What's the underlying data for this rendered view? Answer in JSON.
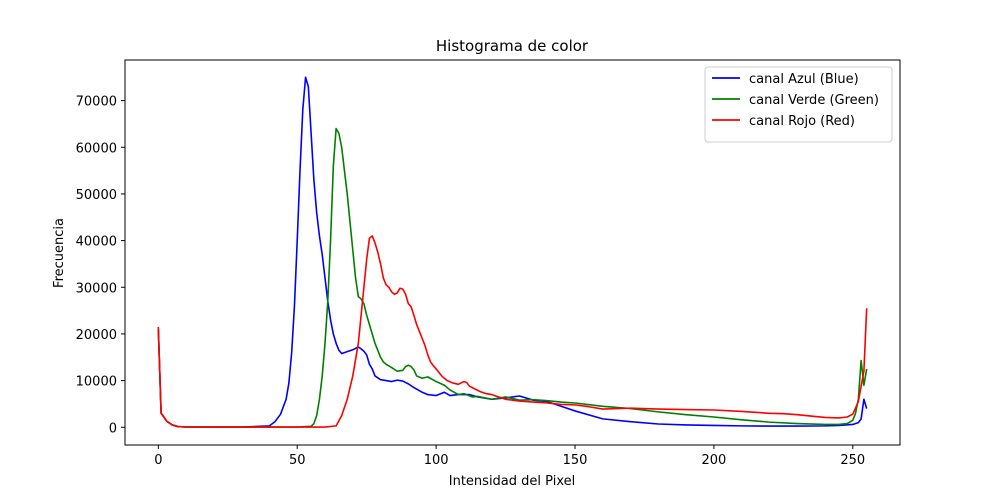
{
  "chart_data": {
    "type": "line",
    "title": "Histograma de color",
    "xlabel": "Intensidad del Pixel",
    "ylabel": "Frecuencia",
    "xlim": [
      -12,
      267
    ],
    "ylim": [
      -3800,
      78700
    ],
    "xticks": [
      0,
      50,
      100,
      150,
      200,
      250
    ],
    "yticks": [
      0,
      10000,
      20000,
      30000,
      40000,
      50000,
      60000,
      70000
    ],
    "grid": false,
    "legend_position": "top-right",
    "series": [
      {
        "name": "canal Azul (Blue)",
        "color": "#0000ff",
        "points": [
          [
            0,
            21000
          ],
          [
            1,
            3000
          ],
          [
            2,
            2200
          ],
          [
            3,
            1300
          ],
          [
            5,
            500
          ],
          [
            7,
            150
          ],
          [
            10,
            60
          ],
          [
            20,
            40
          ],
          [
            30,
            40
          ],
          [
            40,
            300
          ],
          [
            42,
            1200
          ],
          [
            44,
            2800
          ],
          [
            46,
            6000
          ],
          [
            47,
            9500
          ],
          [
            48,
            16000
          ],
          [
            49,
            26000
          ],
          [
            50,
            40000
          ],
          [
            51,
            55000
          ],
          [
            52,
            68000
          ],
          [
            53,
            75000
          ],
          [
            54,
            73000
          ],
          [
            55,
            63000
          ],
          [
            56,
            53000
          ],
          [
            57,
            46000
          ],
          [
            58,
            41000
          ],
          [
            59,
            37000
          ],
          [
            60,
            32000
          ],
          [
            61,
            27000
          ],
          [
            62,
            23000
          ],
          [
            63,
            20000
          ],
          [
            64,
            18000
          ],
          [
            65,
            16500
          ],
          [
            66,
            15800
          ],
          [
            67,
            16000
          ],
          [
            68,
            16200
          ],
          [
            70,
            16600
          ],
          [
            72,
            17200
          ],
          [
            73,
            16800
          ],
          [
            74,
            16300
          ],
          [
            75,
            15500
          ],
          [
            76,
            13500
          ],
          [
            77,
            12500
          ],
          [
            78,
            11000
          ],
          [
            80,
            10200
          ],
          [
            82,
            10000
          ],
          [
            84,
            9800
          ],
          [
            86,
            10100
          ],
          [
            88,
            9900
          ],
          [
            90,
            9300
          ],
          [
            92,
            8500
          ],
          [
            95,
            7500
          ],
          [
            97,
            7000
          ],
          [
            100,
            6800
          ],
          [
            103,
            7500
          ],
          [
            105,
            6800
          ],
          [
            108,
            7000
          ],
          [
            110,
            7000
          ],
          [
            112,
            7000
          ],
          [
            115,
            6500
          ],
          [
            120,
            6000
          ],
          [
            125,
            6300
          ],
          [
            130,
            6700
          ],
          [
            135,
            5800
          ],
          [
            140,
            5500
          ],
          [
            145,
            4500
          ],
          [
            150,
            3500
          ],
          [
            160,
            1800
          ],
          [
            170,
            1200
          ],
          [
            180,
            700
          ],
          [
            190,
            500
          ],
          [
            200,
            400
          ],
          [
            210,
            300
          ],
          [
            220,
            250
          ],
          [
            230,
            250
          ],
          [
            240,
            300
          ],
          [
            245,
            400
          ],
          [
            250,
            600
          ],
          [
            252,
            1000
          ],
          [
            253,
            1800
          ],
          [
            254,
            6000
          ],
          [
            255,
            4000
          ]
        ]
      },
      {
        "name": "canal Verde (Green)",
        "color": "#008000",
        "points": [
          [
            0,
            21000
          ],
          [
            1,
            3000
          ],
          [
            2,
            2200
          ],
          [
            3,
            1300
          ],
          [
            5,
            500
          ],
          [
            7,
            150
          ],
          [
            10,
            60
          ],
          [
            20,
            40
          ],
          [
            30,
            40
          ],
          [
            40,
            40
          ],
          [
            50,
            40
          ],
          [
            55,
            200
          ],
          [
            56,
            800
          ],
          [
            57,
            2500
          ],
          [
            58,
            6000
          ],
          [
            59,
            11000
          ],
          [
            60,
            18000
          ],
          [
            61,
            27000
          ],
          [
            62,
            40000
          ],
          [
            63,
            56000
          ],
          [
            64,
            64000
          ],
          [
            65,
            63000
          ],
          [
            66,
            60000
          ],
          [
            67,
            55000
          ],
          [
            68,
            50000
          ],
          [
            69,
            44000
          ],
          [
            70,
            38000
          ],
          [
            71,
            32000
          ],
          [
            72,
            28000
          ],
          [
            73,
            27500
          ],
          [
            74,
            26500
          ],
          [
            75,
            24000
          ],
          [
            76,
            22000
          ],
          [
            77,
            20000
          ],
          [
            78,
            18000
          ],
          [
            79,
            16500
          ],
          [
            80,
            15000
          ],
          [
            81,
            14000
          ],
          [
            82,
            13500
          ],
          [
            84,
            12800
          ],
          [
            86,
            12000
          ],
          [
            88,
            12200
          ],
          [
            89,
            13000
          ],
          [
            90,
            13300
          ],
          [
            91,
            13000
          ],
          [
            92,
            12300
          ],
          [
            93,
            11000
          ],
          [
            95,
            10500
          ],
          [
            97,
            10800
          ],
          [
            100,
            9800
          ],
          [
            103,
            9000
          ],
          [
            105,
            8000
          ],
          [
            108,
            7000
          ],
          [
            110,
            7200
          ],
          [
            113,
            6500
          ],
          [
            115,
            6600
          ],
          [
            120,
            6000
          ],
          [
            125,
            6500
          ],
          [
            130,
            5800
          ],
          [
            135,
            5900
          ],
          [
            140,
            5700
          ],
          [
            145,
            5400
          ],
          [
            150,
            5200
          ],
          [
            160,
            4500
          ],
          [
            170,
            4000
          ],
          [
            180,
            3300
          ],
          [
            190,
            2700
          ],
          [
            200,
            2200
          ],
          [
            210,
            1600
          ],
          [
            220,
            1100
          ],
          [
            230,
            800
          ],
          [
            240,
            600
          ],
          [
            245,
            600
          ],
          [
            248,
            800
          ],
          [
            250,
            1500
          ],
          [
            251,
            3000
          ],
          [
            252,
            6000
          ],
          [
            253,
            14300
          ],
          [
            254,
            9000
          ],
          [
            255,
            12500
          ]
        ]
      },
      {
        "name": "canal Rojo (Red)",
        "color": "#ff0000",
        "points": [
          [
            0,
            21500
          ],
          [
            1,
            3000
          ],
          [
            2,
            2200
          ],
          [
            3,
            1300
          ],
          [
            5,
            500
          ],
          [
            7,
            150
          ],
          [
            10,
            60
          ],
          [
            20,
            40
          ],
          [
            30,
            40
          ],
          [
            40,
            40
          ],
          [
            50,
            40
          ],
          [
            60,
            40
          ],
          [
            64,
            300
          ],
          [
            66,
            2500
          ],
          [
            68,
            6000
          ],
          [
            70,
            11000
          ],
          [
            72,
            18000
          ],
          [
            73,
            24000
          ],
          [
            74,
            30000
          ],
          [
            75,
            36000
          ],
          [
            76,
            40500
          ],
          [
            77,
            41000
          ],
          [
            78,
            39500
          ],
          [
            79,
            37500
          ],
          [
            80,
            35000
          ],
          [
            81,
            32000
          ],
          [
            82,
            30500
          ],
          [
            83,
            30000
          ],
          [
            84,
            29000
          ],
          [
            85,
            28500
          ],
          [
            86,
            28800
          ],
          [
            87,
            29800
          ],
          [
            88,
            29600
          ],
          [
            89,
            28500
          ],
          [
            90,
            26500
          ],
          [
            91,
            25800
          ],
          [
            92,
            24000
          ],
          [
            93,
            22000
          ],
          [
            94,
            20500
          ],
          [
            95,
            19000
          ],
          [
            96,
            17500
          ],
          [
            97,
            15500
          ],
          [
            98,
            14000
          ],
          [
            99,
            13200
          ],
          [
            100,
            12500
          ],
          [
            102,
            11000
          ],
          [
            104,
            10000
          ],
          [
            106,
            9500
          ],
          [
            108,
            9200
          ],
          [
            110,
            9800
          ],
          [
            111,
            9600
          ],
          [
            112,
            8800
          ],
          [
            114,
            8200
          ],
          [
            116,
            7600
          ],
          [
            118,
            7200
          ],
          [
            120,
            7000
          ],
          [
            125,
            6000
          ],
          [
            130,
            5600
          ],
          [
            135,
            5400
          ],
          [
            140,
            5200
          ],
          [
            145,
            4900
          ],
          [
            150,
            4800
          ],
          [
            155,
            4400
          ],
          [
            160,
            3900
          ],
          [
            170,
            4100
          ],
          [
            180,
            3900
          ],
          [
            190,
            3800
          ],
          [
            200,
            3700
          ],
          [
            210,
            3400
          ],
          [
            220,
            3000
          ],
          [
            225,
            2900
          ],
          [
            230,
            2700
          ],
          [
            235,
            2400
          ],
          [
            240,
            2100
          ],
          [
            245,
            2000
          ],
          [
            248,
            2200
          ],
          [
            250,
            2800
          ],
          [
            252,
            5500
          ],
          [
            254,
            12000
          ],
          [
            255,
            25500
          ]
        ]
      }
    ]
  }
}
